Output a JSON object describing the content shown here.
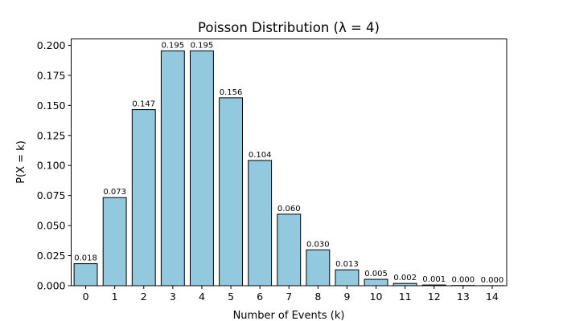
{
  "chart_data": {
    "type": "bar",
    "title": "Poisson Distribution (λ = 4)",
    "xlabel": "Number of Events (k)",
    "ylabel": "P(X = k)",
    "categories": [
      "0",
      "1",
      "2",
      "3",
      "4",
      "5",
      "6",
      "7",
      "8",
      "9",
      "10",
      "11",
      "12",
      "13",
      "14"
    ],
    "values": [
      0.0183,
      0.0733,
      0.1465,
      0.1954,
      0.1954,
      0.1563,
      0.1042,
      0.0595,
      0.0298,
      0.0132,
      0.0053,
      0.0019,
      0.0006,
      0.0002,
      0.0001
    ],
    "data_labels": [
      "0.018",
      "0.073",
      "0.147",
      "0.195",
      "0.195",
      "0.156",
      "0.104",
      "0.060",
      "0.030",
      "0.013",
      "0.005",
      "0.002",
      "0.001",
      "0.000",
      "0.000"
    ],
    "yticks": [
      "0.000",
      "0.025",
      "0.050",
      "0.075",
      "0.100",
      "0.125",
      "0.150",
      "0.175",
      "0.200"
    ],
    "ylim": [
      0,
      0.2053
    ],
    "xlim": [
      -0.5,
      14.5
    ],
    "grid": false,
    "bar_color": "#93c9de",
    "edge_color": "#000000"
  }
}
